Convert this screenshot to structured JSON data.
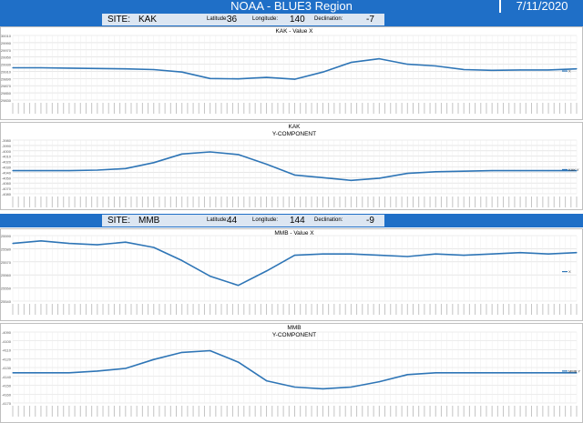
{
  "header": {
    "title": "NOAA - BLUE3 Region",
    "date": "7/11/2020"
  },
  "sites": [
    {
      "label": "SITE:",
      "code": "KAK",
      "lat_label": "Latitude:",
      "lat": "36",
      "lon_label": "Longitude:",
      "lon": "140",
      "dec_label": "Declination:",
      "dec": "-7"
    },
    {
      "label": "SITE:",
      "code": "MMB",
      "lat_label": "Latitude:",
      "lat": "44",
      "lon_label": "Longitude:",
      "lon": "144",
      "dec_label": "Declination:",
      "dec": "-9"
    }
  ],
  "colors": {
    "line": "#2e75b6",
    "bar": "#1f6fc7",
    "grid": "#d9d9d9"
  },
  "chart_data": [
    {
      "type": "line",
      "title": "KAK - Value X",
      "legend": "X",
      "legend_position": "right",
      "grid": true,
      "yticks": [
        "30010",
        "29990",
        "29970",
        "29950",
        "29930",
        "29910",
        "29890",
        "29870",
        "29850",
        "29830"
      ],
      "x": [
        0,
        5,
        10,
        15,
        20,
        25,
        30,
        35,
        40,
        45,
        50,
        55,
        60,
        65,
        70,
        75,
        80,
        85,
        90,
        95,
        100
      ],
      "values": [
        29920,
        29920,
        29919,
        29918,
        29917,
        29915,
        29908,
        29890,
        29889,
        29893,
        29888,
        29908,
        29935,
        29945,
        29930,
        29925,
        29915,
        29913,
        29914,
        29914,
        29917
      ]
    },
    {
      "type": "line",
      "title": "KAK",
      "subtitle": "Y-COMPONENT",
      "legend": "KAK Y",
      "legend_position": "right",
      "grid": true,
      "yticks": [
        "-3980",
        "-3990",
        "-4000",
        "-4010",
        "-4020",
        "-4030",
        "-4040",
        "-4050",
        "-4060",
        "-4070",
        "-4080"
      ],
      "x": [
        0,
        5,
        10,
        15,
        20,
        25,
        30,
        35,
        40,
        45,
        50,
        55,
        60,
        65,
        70,
        75,
        80,
        85,
        90,
        95,
        100
      ],
      "values": [
        -4037,
        -4037,
        -4037,
        -4036,
        -4033,
        -4022,
        -4006,
        -4002,
        -4007,
        -4025,
        -4045,
        -4050,
        -4055,
        -4051,
        -4042,
        -4039,
        -4038,
        -4037,
        -4037,
        -4037,
        -4037
      ]
    },
    {
      "type": "line",
      "title": "MMB - Value X",
      "legend": "X",
      "legend_position": "right",
      "grid": true,
      "yticks": [
        "25590",
        "25580",
        "25570",
        "25560",
        "25550",
        "25540"
      ],
      "x": [
        0,
        5,
        10,
        15,
        20,
        25,
        30,
        35,
        40,
        45,
        50,
        55,
        60,
        65,
        70,
        75,
        80,
        85,
        90,
        95,
        100
      ],
      "values": [
        25584,
        25586,
        25584,
        25583,
        25585,
        25581,
        25571,
        25559,
        25552,
        25563,
        25575,
        25576,
        25576,
        25575,
        25574,
        25576,
        25575,
        25576,
        25577,
        25576,
        25577
      ]
    },
    {
      "type": "line",
      "title": "MMB",
      "subtitle": "Y-COMPONENT",
      "legend": "MMB Y",
      "legend_position": "right",
      "grid": true,
      "yticks": [
        "-4090",
        "-4100",
        "-4110",
        "-4120",
        "-4130",
        "-4140",
        "-4150",
        "-4160",
        "-4170"
      ],
      "x": [
        0,
        5,
        10,
        15,
        20,
        25,
        30,
        35,
        40,
        45,
        50,
        55,
        60,
        65,
        70,
        75,
        80,
        85,
        90,
        95,
        100
      ],
      "values": [
        -4136,
        -4136,
        -4136,
        -4134,
        -4131,
        -4121,
        -4113,
        -4111,
        -4124,
        -4145,
        -4152,
        -4154,
        -4152,
        -4146,
        -4138,
        -4136,
        -4136,
        -4136,
        -4136,
        -4136,
        -4136
      ]
    }
  ]
}
